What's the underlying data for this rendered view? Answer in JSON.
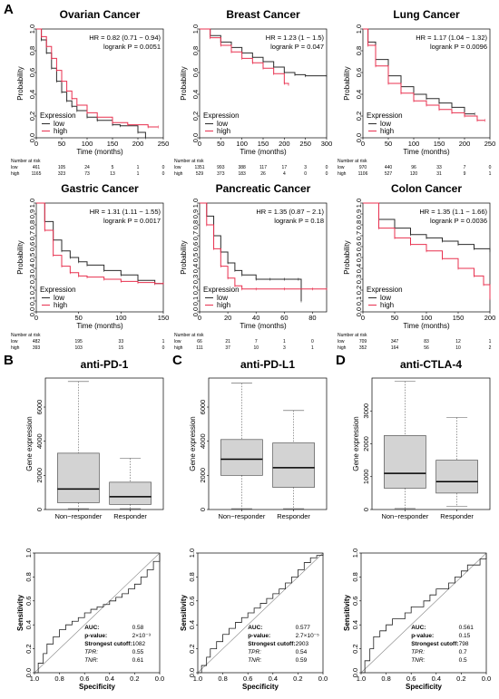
{
  "colors": {
    "low": "#2b2b2b",
    "high": "#e8304f",
    "box_fill": "#d3d3d3",
    "box_stroke": "#555555"
  },
  "panel_labels": [
    "A",
    "B",
    "C",
    "D"
  ],
  "chart_data": [
    {
      "type": "line",
      "id": "km-ovarian",
      "title": "Ovarian Cancer",
      "hr": "HR = 0.82 (0.71 − 0.94)",
      "logrank": "logrank P = 0.0051",
      "xlabel": "Time (months)",
      "ylabel": "Probability",
      "xlim": [
        0,
        250
      ],
      "ylim": [
        0,
        1
      ],
      "x_ticks": [
        0,
        50,
        100,
        150,
        200,
        250
      ],
      "y_ticks": [
        0,
        0.2,
        0.4,
        0.6,
        0.8,
        1.0
      ],
      "legend": {
        "title": "Expression",
        "items": [
          "low",
          "high"
        ]
      },
      "series": [
        {
          "name": "low",
          "x": [
            0,
            10,
            20,
            30,
            40,
            50,
            60,
            70,
            80,
            100,
            120,
            150,
            165,
            200,
            215
          ],
          "y": [
            1,
            0.9,
            0.78,
            0.64,
            0.52,
            0.42,
            0.34,
            0.29,
            0.25,
            0.19,
            0.16,
            0.12,
            0.11,
            0.05,
            0
          ]
        },
        {
          "name": "high",
          "x": [
            0,
            10,
            20,
            30,
            40,
            50,
            60,
            70,
            80,
            100,
            120,
            150,
            180,
            220,
            240
          ],
          "y": [
            1,
            0.93,
            0.84,
            0.73,
            0.62,
            0.52,
            0.43,
            0.36,
            0.3,
            0.23,
            0.19,
            0.14,
            0.12,
            0.1,
            0.1
          ]
        }
      ],
      "risk": {
        "label": "Number at risk",
        "times": [
          0,
          50,
          100,
          150,
          200,
          250
        ],
        "low": [
          "461",
          "105",
          "24",
          "5",
          "1",
          "0"
        ],
        "high": [
          "1165",
          "323",
          "73",
          "13",
          "1",
          "0"
        ]
      }
    },
    {
      "type": "line",
      "id": "km-breast",
      "title": "Breast Cancer",
      "hr": "HR = 1.23 (1 − 1.5)",
      "logrank": "logrank P = 0.047",
      "xlabel": "Time (months)",
      "ylabel": "Probability",
      "xlim": [
        0,
        300
      ],
      "ylim": [
        0,
        1
      ],
      "x_ticks": [
        0,
        50,
        100,
        150,
        200,
        250,
        300
      ],
      "y_ticks": [
        0,
        0.2,
        0.4,
        0.6,
        0.8,
        1.0
      ],
      "legend": {
        "title": "Expression",
        "items": [
          "low",
          "high"
        ]
      },
      "series": [
        {
          "name": "low",
          "x": [
            0,
            25,
            50,
            75,
            100,
            125,
            150,
            175,
            200,
            225,
            250,
            300
          ],
          "y": [
            1,
            0.94,
            0.88,
            0.83,
            0.78,
            0.74,
            0.7,
            0.65,
            0.6,
            0.58,
            0.57,
            0.57
          ]
        },
        {
          "name": "high",
          "x": [
            0,
            25,
            50,
            75,
            100,
            125,
            150,
            175,
            200,
            210
          ],
          "y": [
            1,
            0.92,
            0.85,
            0.79,
            0.73,
            0.69,
            0.64,
            0.59,
            0.5,
            0.49
          ]
        }
      ],
      "risk": {
        "label": "Number at risk",
        "times": [
          0,
          50,
          100,
          150,
          200,
          250,
          300
        ],
        "low": [
          "1351",
          "993",
          "388",
          "117",
          "17",
          "3",
          "0"
        ],
        "high": [
          "529",
          "373",
          "183",
          "26",
          "4",
          "0",
          "0"
        ]
      }
    },
    {
      "type": "line",
      "id": "km-lung",
      "title": "Lung Cancer",
      "hr": "HR = 1.17 (1.04 − 1.32)",
      "logrank": "logrank P = 0.0096",
      "xlabel": "Time (months)",
      "ylabel": "Probability",
      "xlim": [
        0,
        250
      ],
      "ylim": [
        0,
        1
      ],
      "x_ticks": [
        0,
        50,
        100,
        150,
        200,
        250
      ],
      "y_ticks": [
        0,
        0.2,
        0.4,
        0.6,
        0.8,
        1.0
      ],
      "legend": {
        "title": "Expression",
        "items": [
          "low",
          "high"
        ]
      },
      "series": [
        {
          "name": "low",
          "x": [
            0,
            10,
            25,
            50,
            75,
            100,
            125,
            150,
            175,
            200,
            220
          ],
          "y": [
            1,
            0.88,
            0.72,
            0.57,
            0.47,
            0.4,
            0.36,
            0.32,
            0.28,
            0.22,
            0.22
          ]
        },
        {
          "name": "high",
          "x": [
            0,
            10,
            25,
            50,
            75,
            100,
            125,
            150,
            175,
            200,
            225,
            240
          ],
          "y": [
            1,
            0.85,
            0.66,
            0.5,
            0.41,
            0.34,
            0.3,
            0.26,
            0.23,
            0.2,
            0.16,
            0.16
          ]
        }
      ],
      "risk": {
        "label": "Number at risk",
        "times": [
          0,
          50,
          100,
          150,
          200,
          250
        ],
        "low": [
          "970",
          "440",
          "96",
          "33",
          "7",
          "0"
        ],
        "high": [
          "1106",
          "527",
          "120",
          "31",
          "9",
          "1"
        ]
      }
    },
    {
      "type": "line",
      "id": "km-gastric",
      "title": "Gastric Cancer",
      "hr": "HR = 1.31 (1.11 − 1.55)",
      "logrank": "logrank P = 0.0017",
      "xlabel": "Time (months)",
      "ylabel": "Probability",
      "xlim": [
        0,
        150
      ],
      "ylim": [
        0,
        1
      ],
      "x_ticks": [
        0,
        50,
        100,
        150
      ],
      "y_ticks": [
        0,
        0.1,
        0.2,
        0.3,
        0.4,
        0.5,
        0.6,
        0.7,
        0.8,
        0.9,
        1.0
      ],
      "legend": {
        "title": "Expression",
        "items": [
          "low",
          "high"
        ]
      },
      "series": [
        {
          "name": "low",
          "x": [
            0,
            10,
            20,
            30,
            40,
            50,
            60,
            80,
            100,
            120,
            140,
            150
          ],
          "y": [
            1,
            0.83,
            0.66,
            0.56,
            0.5,
            0.46,
            0.43,
            0.38,
            0.34,
            0.29,
            0.26,
            0.26
          ]
        },
        {
          "name": "high",
          "x": [
            0,
            10,
            20,
            30,
            40,
            50,
            60,
            80,
            100,
            120,
            140,
            150
          ],
          "y": [
            1,
            0.75,
            0.52,
            0.42,
            0.36,
            0.33,
            0.32,
            0.3,
            0.28,
            0.27,
            0.26,
            0.26
          ]
        }
      ],
      "risk": {
        "label": "Number at risk",
        "times": [
          0,
          50,
          100,
          150
        ],
        "low": [
          "482",
          "195",
          "33",
          "1"
        ],
        "high": [
          "393",
          "103",
          "15",
          "0"
        ]
      }
    },
    {
      "type": "line",
      "id": "km-pancreatic",
      "title": "Pancreatic Cancer",
      "hr": "HR = 1.35 (0.87 − 2.1)",
      "logrank": "logrank P = 0.18",
      "xlabel": "Time (months)",
      "ylabel": "Probability",
      "xlim": [
        0,
        90
      ],
      "ylim": [
        0,
        1
      ],
      "x_ticks": [
        0,
        20,
        40,
        60,
        80
      ],
      "y_ticks": [
        0,
        0.1,
        0.2,
        0.3,
        0.4,
        0.5,
        0.6,
        0.7,
        0.8,
        0.9,
        1.0
      ],
      "legend": {
        "title": "Expression",
        "items": [
          "low",
          "high"
        ]
      },
      "series": [
        {
          "name": "low",
          "x": [
            0,
            5,
            10,
            15,
            20,
            25,
            30,
            40,
            50,
            60,
            70,
            72
          ],
          "y": [
            1,
            0.88,
            0.7,
            0.55,
            0.45,
            0.38,
            0.34,
            0.3,
            0.3,
            0.3,
            0.3,
            0.1
          ]
        },
        {
          "name": "high",
          "x": [
            0,
            5,
            10,
            15,
            20,
            25,
            30,
            40,
            60,
            80,
            90
          ],
          "y": [
            1,
            0.8,
            0.58,
            0.42,
            0.31,
            0.24,
            0.21,
            0.21,
            0.21,
            0.21,
            0.21
          ]
        }
      ],
      "risk": {
        "label": "Number at risk",
        "times": [
          0,
          20,
          40,
          60,
          80
        ],
        "low": [
          "66",
          "21",
          "7",
          "1",
          "0"
        ],
        "high": [
          "111",
          "37",
          "10",
          "3",
          "1"
        ]
      }
    },
    {
      "type": "line",
      "id": "km-colon",
      "title": "Colon  Cancer",
      "hr": "HR = 1.35 (1.1 − 1.66)",
      "logrank": "logrank P = 0.0036",
      "xlabel": "Time (months)",
      "ylabel": "Probability",
      "xlim": [
        0,
        200
      ],
      "ylim": [
        0,
        1
      ],
      "x_ticks": [
        0,
        50,
        100,
        150,
        200
      ],
      "y_ticks": [
        0,
        0.1,
        0.2,
        0.3,
        0.4,
        0.5,
        0.6,
        0.7,
        0.8,
        0.9,
        1.0
      ],
      "legend": {
        "title": "Expression",
        "items": [
          "low",
          "high"
        ]
      },
      "series": [
        {
          "name": "low",
          "x": [
            0,
            25,
            50,
            75,
            100,
            125,
            150,
            175,
            200
          ],
          "y": [
            1,
            0.85,
            0.77,
            0.71,
            0.68,
            0.65,
            0.62,
            0.58,
            0.56
          ]
        },
        {
          "name": "high",
          "x": [
            0,
            25,
            50,
            75,
            100,
            125,
            150,
            175,
            190,
            200
          ],
          "y": [
            1,
            0.77,
            0.68,
            0.62,
            0.56,
            0.49,
            0.4,
            0.33,
            0.25,
            0.12
          ]
        }
      ],
      "risk": {
        "label": "Number at risk",
        "times": [
          0,
          50,
          100,
          150,
          200
        ],
        "low": [
          "709",
          "347",
          "83",
          "12",
          "1"
        ],
        "high": [
          "352",
          "164",
          "56",
          "10",
          "2"
        ]
      }
    },
    {
      "type": "box",
      "id": "box-pd1",
      "title": "anti-PD-1",
      "ylabel": "Gene expression",
      "ylim": [
        0,
        7700
      ],
      "y_ticks": [
        0,
        2000,
        4000,
        6000
      ],
      "categories": [
        "Non−responder",
        "Responder"
      ],
      "boxes": [
        {
          "min": 50,
          "q1": 400,
          "median": 1200,
          "q3": 3300,
          "max": 7500
        },
        {
          "min": 50,
          "q1": 300,
          "median": 750,
          "q3": 1600,
          "max": 3000
        }
      ]
    },
    {
      "type": "box",
      "id": "box-pdl1",
      "title": "anti-PD-L1",
      "ylabel": "Gene expression",
      "ylim": [
        0,
        7700
      ],
      "y_ticks": [
        0,
        2000,
        4000,
        6000
      ],
      "categories": [
        "Non−responder",
        "Responder"
      ],
      "boxes": [
        {
          "min": 50,
          "q1": 2000,
          "median": 2950,
          "q3": 4100,
          "max": 7400
        },
        {
          "min": 50,
          "q1": 1300,
          "median": 2450,
          "q3": 3900,
          "max": 5800
        }
      ]
    },
    {
      "type": "box",
      "id": "box-ctla4",
      "title": "anti-CTLA-4",
      "ylabel": "Gene expression",
      "ylim": [
        0,
        4000
      ],
      "y_ticks": [
        0,
        1000,
        2000,
        3000
      ],
      "categories": [
        "Non−responder",
        "Responder"
      ],
      "boxes": [
        {
          "min": 30,
          "q1": 650,
          "median": 1100,
          "q3": 2250,
          "max": 3900
        },
        {
          "min": 100,
          "q1": 500,
          "median": 850,
          "q3": 1500,
          "max": 2800
        }
      ]
    },
    {
      "type": "line",
      "id": "roc-pd1",
      "xlabel": "Specificity",
      "ylabel": "Sensitivity",
      "xlim": [
        1,
        0
      ],
      "ylim": [
        0,
        1
      ],
      "x_ticks": [
        1.0,
        0.8,
        0.6,
        0.4,
        0.2,
        0.0
      ],
      "y_ticks": [
        0,
        0.2,
        0.4,
        0.6,
        0.8,
        1.0
      ],
      "stats": {
        "auc_label": "AUC:",
        "auc": "0.58",
        "p_label": "p-value:",
        "p": "2×10⁻³",
        "cut_label": "Strongest cutoff:",
        "cut": "1082",
        "tpr_label": "TPR:",
        "tpr": "0.55",
        "tnr_label": "TNR:",
        "tnr": "0.61"
      },
      "series": [
        {
          "x": [
            1,
            0.97,
            0.93,
            0.9,
            0.85,
            0.8,
            0.75,
            0.7,
            0.65,
            0.6,
            0.55,
            0.5,
            0.45,
            0.4,
            0.35,
            0.3,
            0.25,
            0.2,
            0.15,
            0.1,
            0.05,
            0
          ],
          "y": [
            0,
            0.08,
            0.16,
            0.24,
            0.3,
            0.36,
            0.4,
            0.43,
            0.46,
            0.5,
            0.53,
            0.55,
            0.57,
            0.6,
            0.63,
            0.66,
            0.7,
            0.74,
            0.8,
            0.86,
            0.93,
            1
          ]
        }
      ]
    },
    {
      "type": "line",
      "id": "roc-pdl1",
      "xlabel": "Specificity",
      "ylabel": "Sensitivity",
      "xlim": [
        1,
        0
      ],
      "ylim": [
        0,
        1
      ],
      "x_ticks": [
        1.0,
        0.8,
        0.6,
        0.4,
        0.2,
        0.0
      ],
      "y_ticks": [
        0,
        0.2,
        0.4,
        0.6,
        0.8,
        1.0
      ],
      "stats": {
        "auc_label": "AUC:",
        "auc": "0.577",
        "p_label": "p-value:",
        "p": "2.7×10⁻⁵",
        "cut_label": "Strongest cutoff:",
        "cut": "2903",
        "tpr_label": "TPR:",
        "tpr": "0.54",
        "tnr_label": "TNR:",
        "tnr": "0.59"
      },
      "series": [
        {
          "x": [
            1,
            0.97,
            0.93,
            0.9,
            0.85,
            0.8,
            0.75,
            0.7,
            0.65,
            0.6,
            0.55,
            0.5,
            0.45,
            0.4,
            0.35,
            0.3,
            0.25,
            0.2,
            0.15,
            0.1,
            0.05,
            0
          ],
          "y": [
            0,
            0.06,
            0.13,
            0.2,
            0.26,
            0.32,
            0.37,
            0.42,
            0.46,
            0.5,
            0.54,
            0.58,
            0.62,
            0.66,
            0.7,
            0.75,
            0.8,
            0.86,
            0.92,
            0.96,
            0.98,
            1
          ]
        }
      ]
    },
    {
      "type": "line",
      "id": "roc-ctla4",
      "xlabel": "Specificity",
      "ylabel": "Sensitivity",
      "xlim": [
        1,
        0
      ],
      "ylim": [
        0,
        1
      ],
      "x_ticks": [
        1.0,
        0.8,
        0.6,
        0.4,
        0.2,
        0.0
      ],
      "y_ticks": [
        0,
        0.2,
        0.4,
        0.6,
        0.8,
        1.0
      ],
      "stats": {
        "auc_label": "AUC:",
        "auc": "0.561",
        "p_label": "p-value:",
        "p": "0.15",
        "cut_label": "Strongest cutoff:",
        "cut": "798",
        "tpr_label": "TPR:",
        "tpr": "0.7",
        "tnr_label": "TNR:",
        "tnr": "0.5"
      },
      "series": [
        {
          "x": [
            1,
            0.97,
            0.93,
            0.9,
            0.85,
            0.8,
            0.75,
            0.7,
            0.65,
            0.6,
            0.55,
            0.5,
            0.45,
            0.4,
            0.35,
            0.3,
            0.25,
            0.2,
            0.15,
            0.1,
            0.05,
            0
          ],
          "y": [
            0,
            0.1,
            0.2,
            0.3,
            0.35,
            0.4,
            0.45,
            0.45,
            0.5,
            0.55,
            0.55,
            0.6,
            0.65,
            0.7,
            0.7,
            0.75,
            0.8,
            0.85,
            0.9,
            0.9,
            0.95,
            1
          ]
        }
      ]
    }
  ]
}
